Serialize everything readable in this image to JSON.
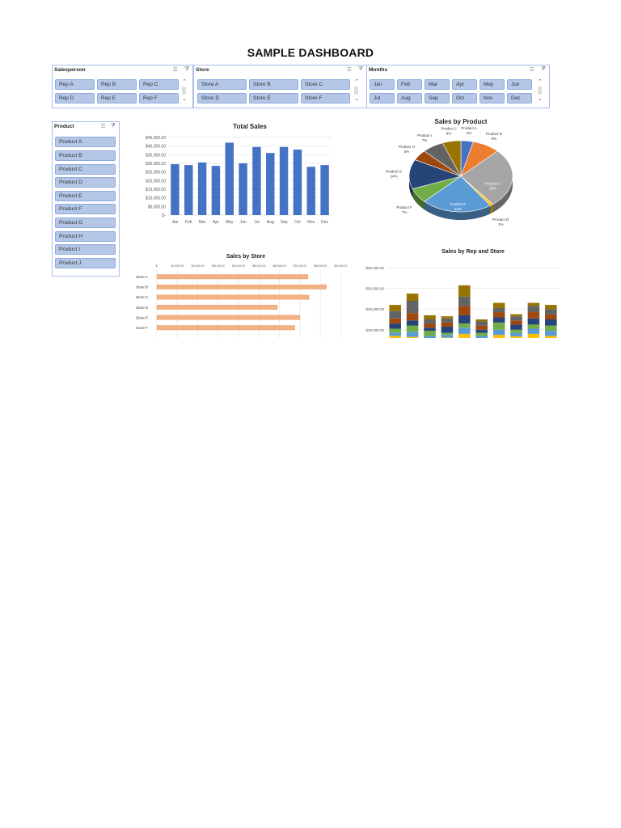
{
  "page_title": "SAMPLE DASHBOARD",
  "slicers": {
    "salesperson": {
      "header": "Salesperson",
      "items": [
        "Rep A",
        "Rep B",
        "Rep C",
        "Rep D",
        "Rep E",
        "Rep F"
      ]
    },
    "store": {
      "header": "Store",
      "items": [
        "Store A",
        "Store B",
        "Store C",
        "Store D",
        "Store E",
        "Store F"
      ]
    },
    "months": {
      "header": "Months",
      "items": [
        "Jan",
        "Feb",
        "Mar",
        "Apr",
        "May",
        "Jun",
        "Jul",
        "Aug",
        "Sep",
        "Oct",
        "Nov",
        "Dec"
      ]
    },
    "product": {
      "header": "Product",
      "items": [
        "Product A",
        "Product B",
        "Product C",
        "Product D",
        "Product E",
        "Product F",
        "Product G",
        "Product H",
        "Product I",
        "Product J"
      ]
    }
  },
  "icons": {
    "multiselect": "multi-select-icon",
    "clear_filter": "clear-filter-icon",
    "scroll_up": "scroll-up-icon",
    "scroll_down": "scroll-down-icon"
  },
  "colors": {
    "slicer_button": "#b4c7e7",
    "slicer_border": "#8eaadb",
    "bar_blue": "#4472c4",
    "store_bar": "#f4b183"
  },
  "chart_data": [
    {
      "type": "bar",
      "title": "Total Sales",
      "categories": [
        "Jan",
        "Feb",
        "Mar",
        "Apr",
        "May",
        "Jun",
        "Jul",
        "Aug",
        "Sep",
        "Oct",
        "Nov",
        "Dec"
      ],
      "values": [
        29500,
        29000,
        30500,
        28500,
        42000,
        30000,
        39500,
        36000,
        39500,
        38000,
        28000,
        29000
      ],
      "ylim": [
        0,
        45000
      ],
      "yticks": [
        "$-",
        "$5,000.00",
        "$10,000.00",
        "$15,000.00",
        "$20,000.00",
        "$25,000.00",
        "$30,000.00",
        "$35,000.00",
        "$40,000.00",
        "$45,000.00"
      ],
      "grid": true
    },
    {
      "type": "pie",
      "title": "Sales by Product",
      "slices": [
        {
          "label": "Product A",
          "pct": "4%",
          "value": 4,
          "color": "#4472c4"
        },
        {
          "label": "Product B",
          "pct": "9%",
          "value": 9,
          "color": "#ed7d31"
        },
        {
          "label": "Product C",
          "pct": "28%",
          "value": 28,
          "color": "#a5a5a5"
        },
        {
          "label": "Product D",
          "pct": "1%",
          "value": 1,
          "color": "#ffc000"
        },
        {
          "label": "Product E",
          "pct": "23%",
          "value": 23,
          "color": "#5b9bd5"
        },
        {
          "label": "Product F",
          "pct": "7%",
          "value": 7,
          "color": "#70ad47"
        },
        {
          "label": "Product G",
          "pct": "14%",
          "value": 14,
          "color": "#264478"
        },
        {
          "label": "Product H",
          "pct": "5%",
          "value": 5,
          "color": "#9e480e"
        },
        {
          "label": "Product I",
          "pct": "7%",
          "value": 7,
          "color": "#636363"
        },
        {
          "label": "Product J",
          "pct": "6%",
          "value": 6,
          "color": "#997300"
        }
      ]
    },
    {
      "type": "bar",
      "title": "Sales by Store",
      "orientation": "horizontal",
      "categories": [
        "Store A",
        "Store B",
        "Store C",
        "Store D",
        "Store E",
        "Store F"
      ],
      "values": [
        74000,
        83000,
        74500,
        59000,
        70000,
        67500
      ],
      "xlim": [
        0,
        95000
      ],
      "xticks": [
        "$-",
        "$10,000.00",
        "$20,000.00",
        "$30,000.00",
        "$40,000.00",
        "$50,000.00",
        "$60,000.00",
        "$70,000.00",
        "$80,000.00",
        "$90,000.00"
      ],
      "grid": true
    },
    {
      "type": "bar",
      "title": "Sales by Rep and Store",
      "stacked": true,
      "yticks_visible": [
        "$30,000.00",
        "$40,000.00",
        "$50,000.00",
        "$60,000.00"
      ],
      "ylim_visible": [
        26000,
        62000
      ],
      "stack_colors": [
        "#ffc000",
        "#5b9bd5",
        "#70ad47",
        "#264478",
        "#9e480e",
        "#636363",
        "#997300"
      ],
      "stacks": [
        [
          27000,
          28500,
          30500,
          33000,
          35500,
          39000,
          42000
        ],
        [
          26500,
          29000,
          32000,
          34500,
          38000,
          44000,
          47500
        ],
        [
          26000,
          27000,
          29500,
          31000,
          33000,
          35000,
          37000
        ],
        [
          26200,
          27500,
          28500,
          31500,
          33500,
          35500,
          36500
        ],
        [
          28000,
          31000,
          33000,
          37000,
          41500,
          46000,
          51500
        ],
        [
          26000,
          27000,
          28500,
          30000,
          32000,
          34000,
          35000
        ],
        [
          27500,
          30000,
          33500,
          36000,
          38500,
          40500,
          43000
        ],
        [
          26800,
          28500,
          30000,
          32500,
          34500,
          36500,
          37500
        ],
        [
          28000,
          30500,
          32500,
          35500,
          38500,
          41500,
          43000
        ],
        [
          27000,
          29500,
          32000,
          35000,
          37500,
          40000,
          42000
        ]
      ]
    }
  ]
}
